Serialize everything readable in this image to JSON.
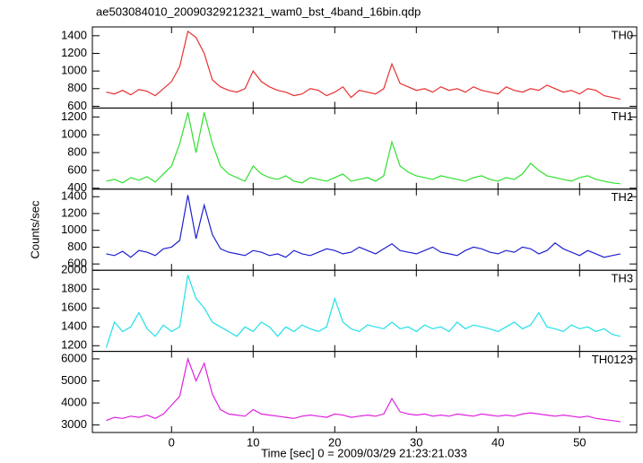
{
  "chart_data": [
    {
      "type": "line",
      "title": "ae503084010_20090329212321_wam0_bst_4band_16bin.qdp",
      "x": [
        -8,
        -7,
        -6,
        -5,
        -4,
        -3,
        -2,
        -1,
        0,
        1,
        2,
        3,
        4,
        5,
        6,
        7,
        8,
        9,
        10,
        11,
        12,
        13,
        14,
        15,
        16,
        17,
        18,
        19,
        20,
        21,
        22,
        23,
        24,
        25,
        26,
        27,
        28,
        29,
        30,
        31,
        32,
        33,
        34,
        35,
        36,
        37,
        38,
        39,
        40,
        41,
        42,
        43,
        44,
        45,
        46,
        47,
        48,
        49,
        50,
        51,
        52,
        53,
        54,
        55
      ],
      "series": [
        {
          "name": "TH0",
          "color": "#e83030",
          "values": [
            760,
            740,
            780,
            730,
            790,
            770,
            720,
            800,
            880,
            1050,
            1450,
            1380,
            1200,
            900,
            820,
            780,
            760,
            800,
            1000,
            880,
            820,
            780,
            760,
            720,
            740,
            800,
            780,
            720,
            760,
            820,
            700,
            780,
            760,
            740,
            800,
            1080,
            860,
            820,
            780,
            800,
            760,
            820,
            780,
            800,
            760,
            820,
            780,
            760,
            740,
            820,
            780,
            760,
            800,
            780,
            840,
            800,
            760,
            780,
            740,
            800,
            780,
            720,
            700,
            680
          ]
        }
      ],
      "xlim": [
        -9.7,
        57
      ],
      "ylim": [
        580,
        1500
      ],
      "yticks": [
        600,
        800,
        1000,
        1200,
        1400
      ]
    },
    {
      "type": "line",
      "x": [
        -8,
        -7,
        -6,
        -5,
        -4,
        -3,
        -2,
        -1,
        0,
        1,
        2,
        3,
        4,
        5,
        6,
        7,
        8,
        9,
        10,
        11,
        12,
        13,
        14,
        15,
        16,
        17,
        18,
        19,
        20,
        21,
        22,
        23,
        24,
        25,
        26,
        27,
        28,
        29,
        30,
        31,
        32,
        33,
        34,
        35,
        36,
        37,
        38,
        39,
        40,
        41,
        42,
        43,
        44,
        45,
        46,
        47,
        48,
        49,
        50,
        51,
        52,
        53,
        54,
        55
      ],
      "series": [
        {
          "name": "TH1",
          "color": "#30e030",
          "values": [
            480,
            500,
            460,
            520,
            490,
            530,
            470,
            560,
            650,
            900,
            1250,
            800,
            1250,
            900,
            650,
            560,
            520,
            480,
            650,
            560,
            520,
            500,
            540,
            480,
            460,
            520,
            500,
            480,
            520,
            560,
            480,
            500,
            520,
            480,
            540,
            920,
            650,
            580,
            540,
            520,
            500,
            540,
            520,
            500,
            480,
            520,
            540,
            500,
            480,
            520,
            500,
            560,
            680,
            600,
            540,
            520,
            500,
            480,
            520,
            540,
            500,
            480,
            460,
            450
          ]
        }
      ],
      "xlim": [
        -9.7,
        57
      ],
      "ylim": [
        390,
        1300
      ],
      "yticks": [
        400,
        600,
        800,
        1000,
        1200
      ]
    },
    {
      "type": "line",
      "ylabel": "Counts/sec",
      "x": [
        -8,
        -7,
        -6,
        -5,
        -4,
        -3,
        -2,
        -1,
        0,
        1,
        2,
        3,
        4,
        5,
        6,
        7,
        8,
        9,
        10,
        11,
        12,
        13,
        14,
        15,
        16,
        17,
        18,
        19,
        20,
        21,
        22,
        23,
        24,
        25,
        26,
        27,
        28,
        29,
        30,
        31,
        32,
        33,
        34,
        35,
        36,
        37,
        38,
        39,
        40,
        41,
        42,
        43,
        44,
        45,
        46,
        47,
        48,
        49,
        50,
        51,
        52,
        53,
        54,
        55
      ],
      "series": [
        {
          "name": "TH2",
          "color": "#2020d0",
          "values": [
            720,
            700,
            750,
            680,
            760,
            740,
            700,
            780,
            800,
            880,
            1420,
            900,
            1300,
            950,
            780,
            740,
            720,
            700,
            760,
            740,
            700,
            720,
            680,
            760,
            720,
            700,
            740,
            780,
            760,
            720,
            740,
            800,
            760,
            720,
            780,
            840,
            760,
            740,
            720,
            760,
            800,
            740,
            720,
            700,
            760,
            800,
            780,
            740,
            720,
            760,
            740,
            800,
            780,
            720,
            760,
            850,
            780,
            740,
            700,
            760,
            720,
            680,
            700,
            720
          ]
        }
      ],
      "xlim": [
        -9.7,
        57
      ],
      "ylim": [
        525,
        1490
      ],
      "yticks": [
        600,
        800,
        1000,
        1200,
        1400
      ]
    },
    {
      "type": "line",
      "x": [
        -8,
        -7,
        -6,
        -5,
        -4,
        -3,
        -2,
        -1,
        0,
        1,
        2,
        3,
        4,
        5,
        6,
        7,
        8,
        9,
        10,
        11,
        12,
        13,
        14,
        15,
        16,
        17,
        18,
        19,
        20,
        21,
        22,
        23,
        24,
        25,
        26,
        27,
        28,
        29,
        30,
        31,
        32,
        33,
        34,
        35,
        36,
        37,
        38,
        39,
        40,
        41,
        42,
        43,
        44,
        45,
        46,
        47,
        48,
        49,
        50,
        51,
        52,
        53,
        54,
        55
      ],
      "series": [
        {
          "name": "TH3",
          "color": "#20e0e8",
          "values": [
            1180,
            1450,
            1350,
            1400,
            1550,
            1380,
            1300,
            1420,
            1350,
            1400,
            1950,
            1700,
            1600,
            1450,
            1400,
            1350,
            1300,
            1400,
            1350,
            1450,
            1400,
            1300,
            1400,
            1350,
            1420,
            1380,
            1350,
            1400,
            1700,
            1450,
            1380,
            1350,
            1420,
            1400,
            1380,
            1450,
            1380,
            1400,
            1350,
            1420,
            1380,
            1400,
            1350,
            1450,
            1380,
            1420,
            1400,
            1380,
            1350,
            1400,
            1450,
            1380,
            1420,
            1550,
            1400,
            1380,
            1350,
            1420,
            1380,
            1400,
            1350,
            1380,
            1320,
            1300
          ]
        }
      ],
      "xlim": [
        -9.7,
        57
      ],
      "ylim": [
        1140,
        2000
      ],
      "yticks": [
        1200,
        1400,
        1600,
        1800,
        2000
      ]
    },
    {
      "type": "line",
      "xlabel": "Time [sec] 0 = 2009/03/29 21:23:21.033",
      "x": [
        -8,
        -7,
        -6,
        -5,
        -4,
        -3,
        -2,
        -1,
        0,
        1,
        2,
        3,
        4,
        5,
        6,
        7,
        8,
        9,
        10,
        11,
        12,
        13,
        14,
        15,
        16,
        17,
        18,
        19,
        20,
        21,
        22,
        23,
        24,
        25,
        26,
        27,
        28,
        29,
        30,
        31,
        32,
        33,
        34,
        35,
        36,
        37,
        38,
        39,
        40,
        41,
        42,
        43,
        44,
        45,
        46,
        47,
        48,
        49,
        50,
        51,
        52,
        53,
        54,
        55
      ],
      "series": [
        {
          "name": "TH0123",
          "color": "#e020e0",
          "values": [
            3200,
            3350,
            3300,
            3400,
            3350,
            3450,
            3300,
            3500,
            3900,
            4300,
            6000,
            5000,
            5800,
            4400,
            3700,
            3500,
            3450,
            3400,
            3700,
            3500,
            3450,
            3400,
            3350,
            3300,
            3400,
            3450,
            3400,
            3350,
            3500,
            3450,
            3350,
            3400,
            3450,
            3400,
            3500,
            4200,
            3600,
            3500,
            3450,
            3500,
            3400,
            3450,
            3400,
            3500,
            3450,
            3400,
            3500,
            3450,
            3400,
            3450,
            3400,
            3500,
            3550,
            3500,
            3450,
            3400,
            3450,
            3400,
            3350,
            3400,
            3300,
            3250,
            3200,
            3150
          ]
        }
      ],
      "xlim": [
        -9.7,
        57
      ],
      "ylim": [
        2660,
        6340
      ],
      "yticks": [
        3000,
        4000,
        5000,
        6000
      ],
      "xticks": [
        0,
        10,
        20,
        30,
        40,
        50
      ]
    }
  ]
}
